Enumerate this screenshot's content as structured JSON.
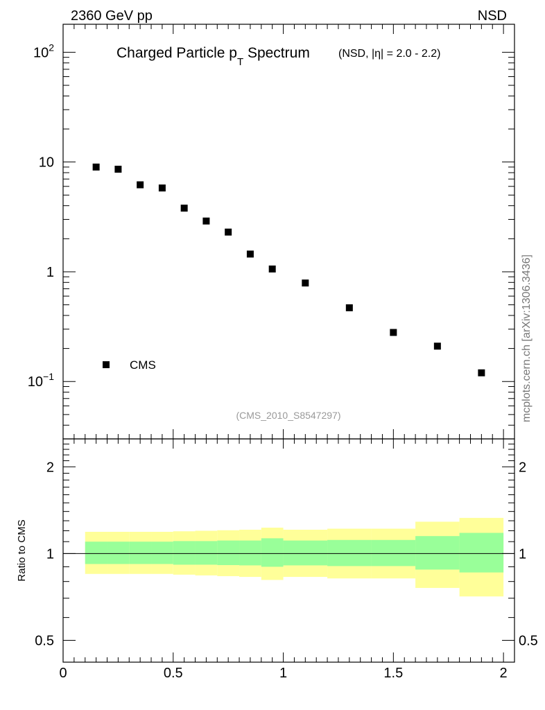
{
  "header": {
    "energy_label": "2360 GeV pp",
    "process_label": "NSD",
    "side_label": "mcplots.cern.ch [arXiv:1306.3436]"
  },
  "chart_data": [
    {
      "type": "scatter",
      "title": "Charged Particle p",
      "title_subscript": "T",
      "title_suffix": " Spectrum",
      "subtitle": "(NSD, |η| = 2.0 - 2.2)",
      "reference": "(CMS_2010_S8547297)",
      "y_scale": "log",
      "xlim": [
        0,
        2.05
      ],
      "ylim": [
        0.03,
        180
      ],
      "y_ticks": [
        {
          "base": "10",
          "exp": "2",
          "value": 100
        },
        {
          "base": "10",
          "exp": "",
          "value": 10
        },
        {
          "base": "1",
          "exp": "",
          "value": 1
        },
        {
          "base": "10",
          "exp": "−1",
          "value": 0.1
        }
      ],
      "legend_placement": "bottom-left",
      "series": [
        {
          "name": "CMS",
          "color": "#000000",
          "marker": "square",
          "points": [
            {
              "x": 0.15,
              "y": 9.0
            },
            {
              "x": 0.25,
              "y": 8.6
            },
            {
              "x": 0.35,
              "y": 6.2
            },
            {
              "x": 0.45,
              "y": 5.8
            },
            {
              "x": 0.55,
              "y": 3.8
            },
            {
              "x": 0.65,
              "y": 2.9
            },
            {
              "x": 0.75,
              "y": 2.3
            },
            {
              "x": 0.85,
              "y": 1.45
            },
            {
              "x": 0.95,
              "y": 1.06
            },
            {
              "x": 1.1,
              "y": 0.79
            },
            {
              "x": 1.3,
              "y": 0.47
            },
            {
              "x": 1.5,
              "y": 0.28
            },
            {
              "x": 1.7,
              "y": 0.21
            },
            {
              "x": 1.9,
              "y": 0.12
            }
          ]
        }
      ]
    },
    {
      "type": "area",
      "ylabel": "Ratio to CMS",
      "y_scale": "log",
      "xlim": [
        0,
        2.05
      ],
      "ylim": [
        0.42,
        2.5
      ],
      "reference_line": 1,
      "x_ticks": [
        {
          "label": "0",
          "value": 0
        },
        {
          "label": "0.5",
          "value": 0.5
        },
        {
          "label": "1",
          "value": 1
        },
        {
          "label": "1.5",
          "value": 1.5
        },
        {
          "label": "2",
          "value": 2
        }
      ],
      "y_ticks": [
        {
          "label": "2",
          "value": 2
        },
        {
          "label": "1",
          "value": 1
        },
        {
          "label": "0.5",
          "value": 0.5
        }
      ],
      "band_colors": {
        "outer": "#ffff99",
        "inner": "#99ff99"
      },
      "bands": [
        {
          "x0": 0.1,
          "x1": 0.2,
          "outer": [
            0.85,
            1.19
          ],
          "inner": [
            0.92,
            1.1
          ]
        },
        {
          "x0": 0.2,
          "x1": 0.3,
          "outer": [
            0.85,
            1.19
          ],
          "inner": [
            0.92,
            1.1
          ]
        },
        {
          "x0": 0.3,
          "x1": 0.4,
          "outer": [
            0.85,
            1.19
          ],
          "inner": [
            0.92,
            1.1
          ]
        },
        {
          "x0": 0.4,
          "x1": 0.5,
          "outer": [
            0.85,
            1.19
          ],
          "inner": [
            0.92,
            1.1
          ]
        },
        {
          "x0": 0.5,
          "x1": 0.6,
          "outer": [
            0.845,
            1.195
          ],
          "inner": [
            0.915,
            1.105
          ]
        },
        {
          "x0": 0.6,
          "x1": 0.7,
          "outer": [
            0.84,
            1.2
          ],
          "inner": [
            0.915,
            1.105
          ]
        },
        {
          "x0": 0.7,
          "x1": 0.8,
          "outer": [
            0.835,
            1.205
          ],
          "inner": [
            0.912,
            1.11
          ]
        },
        {
          "x0": 0.8,
          "x1": 0.9,
          "outer": [
            0.83,
            1.21
          ],
          "inner": [
            0.91,
            1.11
          ]
        },
        {
          "x0": 0.9,
          "x1": 1.0,
          "outer": [
            0.81,
            1.23
          ],
          "inner": [
            0.9,
            1.13
          ]
        },
        {
          "x0": 1.0,
          "x1": 1.2,
          "outer": [
            0.83,
            1.21
          ],
          "inner": [
            0.91,
            1.11
          ]
        },
        {
          "x0": 1.2,
          "x1": 1.4,
          "outer": [
            0.82,
            1.22
          ],
          "inner": [
            0.905,
            1.115
          ]
        },
        {
          "x0": 1.4,
          "x1": 1.6,
          "outer": [
            0.82,
            1.22
          ],
          "inner": [
            0.905,
            1.115
          ]
        },
        {
          "x0": 1.6,
          "x1": 1.8,
          "outer": [
            0.76,
            1.29
          ],
          "inner": [
            0.88,
            1.15
          ]
        },
        {
          "x0": 1.8,
          "x1": 2.0,
          "outer": [
            0.71,
            1.33
          ],
          "inner": [
            0.86,
            1.18
          ]
        }
      ]
    }
  ]
}
